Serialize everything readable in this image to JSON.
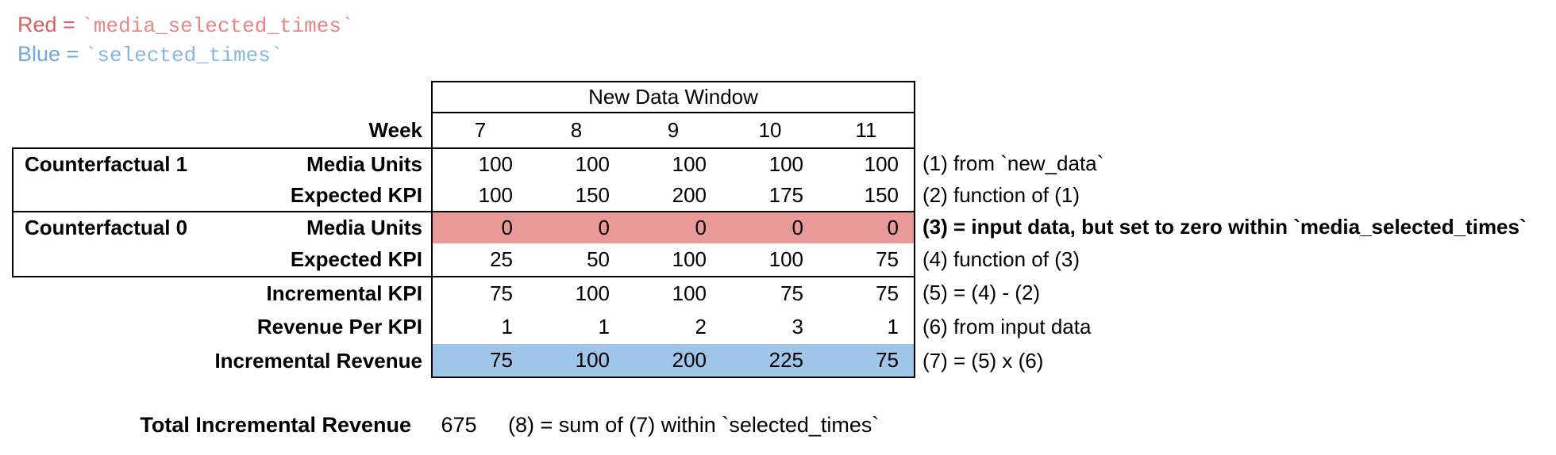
{
  "legend": {
    "red_label": "Red = ",
    "red_code": "`media_selected_times`",
    "blue_label": "Blue = ",
    "blue_code": "`selected_times`"
  },
  "colors": {
    "red_fill": "#EA9999",
    "blue_fill": "#9FC5E8",
    "red_text": "#DC5E5E",
    "red_code": "#E88585",
    "blue_text": "#6FA8DC",
    "blue_code": "#86B6E1"
  },
  "table": {
    "header": "New Data Window",
    "week_label": "Week",
    "weeks": [
      "7",
      "8",
      "9",
      "10",
      "11"
    ],
    "rows": [
      {
        "group": "Counterfactual 1",
        "label": "Media Units",
        "values": [
          "100",
          "100",
          "100",
          "100",
          "100"
        ],
        "annotation": "(1) from `new_data`"
      },
      {
        "group": "",
        "label": "Expected KPI",
        "values": [
          "100",
          "150",
          "200",
          "175",
          "150"
        ],
        "annotation": "(2) function of (1)"
      },
      {
        "group": "Counterfactual 0",
        "label": "Media Units",
        "values": [
          "0",
          "0",
          "0",
          "0",
          "0"
        ],
        "annotation": "(3) = input data, but set to zero within `media_selected_times`",
        "highlight": "red"
      },
      {
        "group": "",
        "label": "Expected KPI",
        "values": [
          "25",
          "50",
          "100",
          "100",
          "75"
        ],
        "annotation": "(4) function of (3)"
      },
      {
        "group": "",
        "label": "Incremental KPI",
        "values": [
          "75",
          "100",
          "100",
          "75",
          "75"
        ],
        "annotation": "(5) = (4) - (2)"
      },
      {
        "group": "",
        "label": "Revenue Per KPI",
        "values": [
          "1",
          "1",
          "2",
          "3",
          "1"
        ],
        "annotation": "(6) from input data"
      },
      {
        "group": "",
        "label": "Incremental Revenue",
        "values": [
          "75",
          "100",
          "200",
          "225",
          "75"
        ],
        "annotation": "(7) = (5) x (6)",
        "highlight": "blue"
      }
    ]
  },
  "total": {
    "label": "Total Incremental Revenue",
    "value": "675",
    "annotation": "(8) = sum of (7) within `selected_times`"
  }
}
